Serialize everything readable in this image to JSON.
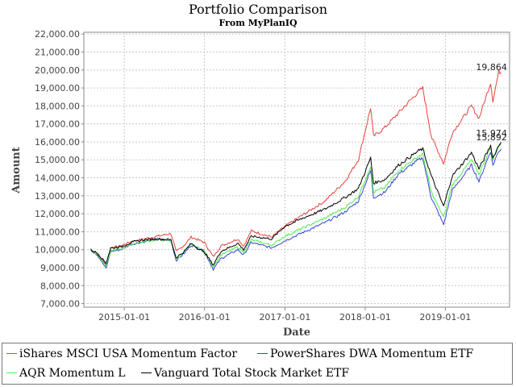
{
  "chart_data": {
    "type": "line",
    "title": "Portfolio Comparison",
    "subtitle": "From MyPlanIQ",
    "xlabel": "Date",
    "ylabel": "Amount",
    "x_ticks": [
      "2015-01-01",
      "2016-01-01",
      "2017-01-01",
      "2018-01-01",
      "2019-01-01"
    ],
    "y_ticks": [
      "7,000.00",
      "8,000.00",
      "9,000.00",
      "10,000.00",
      "11,000.00",
      "12,000.00",
      "13,000.00",
      "14,000.00",
      "15,000.00",
      "16,000.00",
      "17,000.00",
      "18,000.00",
      "19,000.00",
      "20,000.00",
      "21,000.00",
      "22,000.00"
    ],
    "xlim": [
      "2014-07-01",
      "2019-10-20"
    ],
    "ylim": [
      6800,
      22100
    ],
    "grid": true,
    "legend_position": "bottom",
    "end_labels": [
      "19,864",
      "15,974",
      "15,892"
    ],
    "series": [
      {
        "name": "iShares MSCI USA Momentum Factor",
        "color": "#e8413d",
        "points": [
          [
            "2014-08-01",
            10000
          ],
          [
            "2014-09-01",
            9800
          ],
          [
            "2014-10-10",
            9150
          ],
          [
            "2014-10-31",
            10100
          ],
          [
            "2014-12-15",
            10200
          ],
          [
            "2015-02-01",
            10450
          ],
          [
            "2015-04-01",
            10600
          ],
          [
            "2015-06-01",
            10750
          ],
          [
            "2015-08-01",
            10900
          ],
          [
            "2015-08-25",
            9900
          ],
          [
            "2015-10-01",
            10250
          ],
          [
            "2015-11-01",
            10700
          ],
          [
            "2016-01-01",
            10400
          ],
          [
            "2016-02-10",
            9600
          ],
          [
            "2016-03-15",
            10200
          ],
          [
            "2016-06-01",
            10600
          ],
          [
            "2016-06-27",
            10200
          ],
          [
            "2016-08-01",
            11050
          ],
          [
            "2016-11-01",
            10700
          ],
          [
            "2017-01-01",
            11300
          ],
          [
            "2017-04-01",
            12000
          ],
          [
            "2017-07-01",
            12700
          ],
          [
            "2017-10-01",
            13800
          ],
          [
            "2017-12-01",
            15000
          ],
          [
            "2018-01-26",
            17900
          ],
          [
            "2018-02-08",
            16300
          ],
          [
            "2018-04-01",
            16800
          ],
          [
            "2018-06-01",
            17600
          ],
          [
            "2018-09-01",
            18800
          ],
          [
            "2018-09-20",
            19000
          ],
          [
            "2018-10-29",
            16300
          ],
          [
            "2018-12-24",
            14800
          ],
          [
            "2019-02-01",
            16500
          ],
          [
            "2019-04-30",
            18000
          ],
          [
            "2019-06-03",
            17300
          ],
          [
            "2019-07-26",
            19300
          ],
          [
            "2019-08-05",
            18300
          ],
          [
            "2019-09-01",
            19900
          ],
          [
            "2019-09-12",
            19864
          ]
        ]
      },
      {
        "name": "PowerShares DWA Momentum ETF",
        "color": "#3a43d6",
        "points": [
          [
            "2014-08-01",
            10000
          ],
          [
            "2014-09-01",
            9700
          ],
          [
            "2014-10-10",
            8950
          ],
          [
            "2014-10-31",
            9900
          ],
          [
            "2014-12-15",
            10000
          ],
          [
            "2015-02-01",
            10300
          ],
          [
            "2015-04-01",
            10450
          ],
          [
            "2015-06-01",
            10600
          ],
          [
            "2015-08-01",
            10500
          ],
          [
            "2015-08-25",
            9400
          ],
          [
            "2015-10-01",
            9800
          ],
          [
            "2015-11-01",
            10250
          ],
          [
            "2016-01-01",
            9900
          ],
          [
            "2016-02-10",
            8900
          ],
          [
            "2016-03-15",
            9500
          ],
          [
            "2016-06-01",
            10000
          ],
          [
            "2016-06-27",
            9700
          ],
          [
            "2016-08-01",
            10400
          ],
          [
            "2016-11-01",
            10100
          ],
          [
            "2017-01-01",
            10500
          ],
          [
            "2017-04-01",
            11000
          ],
          [
            "2017-07-01",
            11500
          ],
          [
            "2017-10-01",
            12100
          ],
          [
            "2017-12-01",
            12700
          ],
          [
            "2018-01-26",
            14400
          ],
          [
            "2018-02-08",
            12900
          ],
          [
            "2018-04-01",
            13200
          ],
          [
            "2018-06-01",
            14200
          ],
          [
            "2018-09-01",
            15000
          ],
          [
            "2018-09-20",
            15100
          ],
          [
            "2018-10-29",
            12900
          ],
          [
            "2018-12-24",
            11400
          ],
          [
            "2019-02-01",
            13300
          ],
          [
            "2019-04-30",
            14700
          ],
          [
            "2019-06-03",
            13800
          ],
          [
            "2019-07-26",
            15500
          ],
          [
            "2019-08-05",
            14700
          ],
          [
            "2019-09-01",
            15500
          ],
          [
            "2019-09-12",
            15600
          ]
        ]
      },
      {
        "name": "AQR Momentum L",
        "color": "#4cf04c",
        "points": [
          [
            "2014-08-01",
            10000
          ],
          [
            "2014-09-01",
            9750
          ],
          [
            "2014-10-10",
            9050
          ],
          [
            "2014-10-31",
            9950
          ],
          [
            "2014-12-15",
            10050
          ],
          [
            "2015-02-01",
            10300
          ],
          [
            "2015-04-01",
            10450
          ],
          [
            "2015-06-01",
            10550
          ],
          [
            "2015-08-01",
            10500
          ],
          [
            "2015-08-25",
            9500
          ],
          [
            "2015-10-01",
            9850
          ],
          [
            "2015-11-01",
            10300
          ],
          [
            "2016-01-01",
            9950
          ],
          [
            "2016-02-10",
            9050
          ],
          [
            "2016-03-15",
            9700
          ],
          [
            "2016-06-01",
            10150
          ],
          [
            "2016-06-27",
            9850
          ],
          [
            "2016-08-01",
            10550
          ],
          [
            "2016-11-01",
            10250
          ],
          [
            "2017-01-01",
            10750
          ],
          [
            "2017-04-01",
            11250
          ],
          [
            "2017-07-01",
            11750
          ],
          [
            "2017-10-01",
            12350
          ],
          [
            "2017-12-01",
            12950
          ],
          [
            "2018-01-26",
            14650
          ],
          [
            "2018-02-08",
            13200
          ],
          [
            "2018-04-01",
            13450
          ],
          [
            "2018-06-01",
            14400
          ],
          [
            "2018-09-01",
            15200
          ],
          [
            "2018-09-20",
            15300
          ],
          [
            "2018-10-29",
            13200
          ],
          [
            "2018-12-24",
            11800
          ],
          [
            "2019-02-01",
            13600
          ],
          [
            "2019-04-30",
            15000
          ],
          [
            "2019-06-03",
            14200
          ],
          [
            "2019-07-26",
            15700
          ],
          [
            "2019-08-05",
            15000
          ],
          [
            "2019-09-01",
            15800
          ],
          [
            "2019-09-12",
            15892
          ]
        ]
      },
      {
        "name": "Vanguard Total Stock Market ETF",
        "color": "#000000",
        "points": [
          [
            "2014-08-01",
            10000
          ],
          [
            "2014-09-01",
            9800
          ],
          [
            "2014-10-10",
            9250
          ],
          [
            "2014-10-31",
            10100
          ],
          [
            "2014-12-15",
            10150
          ],
          [
            "2015-02-01",
            10400
          ],
          [
            "2015-04-01",
            10550
          ],
          [
            "2015-06-01",
            10600
          ],
          [
            "2015-08-01",
            10550
          ],
          [
            "2015-08-25",
            9550
          ],
          [
            "2015-10-01",
            9900
          ],
          [
            "2015-11-01",
            10350
          ],
          [
            "2016-01-01",
            9850
          ],
          [
            "2016-02-10",
            9150
          ],
          [
            "2016-03-15",
            9900
          ],
          [
            "2016-06-01",
            10350
          ],
          [
            "2016-06-27",
            10000
          ],
          [
            "2016-08-01",
            10750
          ],
          [
            "2016-11-01",
            10600
          ],
          [
            "2017-01-01",
            11300
          ],
          [
            "2017-04-01",
            11800
          ],
          [
            "2017-07-01",
            12250
          ],
          [
            "2017-10-01",
            12900
          ],
          [
            "2017-12-01",
            13400
          ],
          [
            "2018-01-26",
            15100
          ],
          [
            "2018-02-08",
            13700
          ],
          [
            "2018-04-01",
            13900
          ],
          [
            "2018-06-01",
            14700
          ],
          [
            "2018-09-01",
            15500
          ],
          [
            "2018-09-20",
            15600
          ],
          [
            "2018-10-29",
            14100
          ],
          [
            "2018-12-24",
            12400
          ],
          [
            "2019-02-01",
            14100
          ],
          [
            "2019-04-30",
            15400
          ],
          [
            "2019-06-03",
            14500
          ],
          [
            "2019-07-26",
            15800
          ],
          [
            "2019-08-05",
            15100
          ],
          [
            "2019-09-01",
            15800
          ],
          [
            "2019-09-12",
            15974
          ]
        ]
      }
    ]
  }
}
